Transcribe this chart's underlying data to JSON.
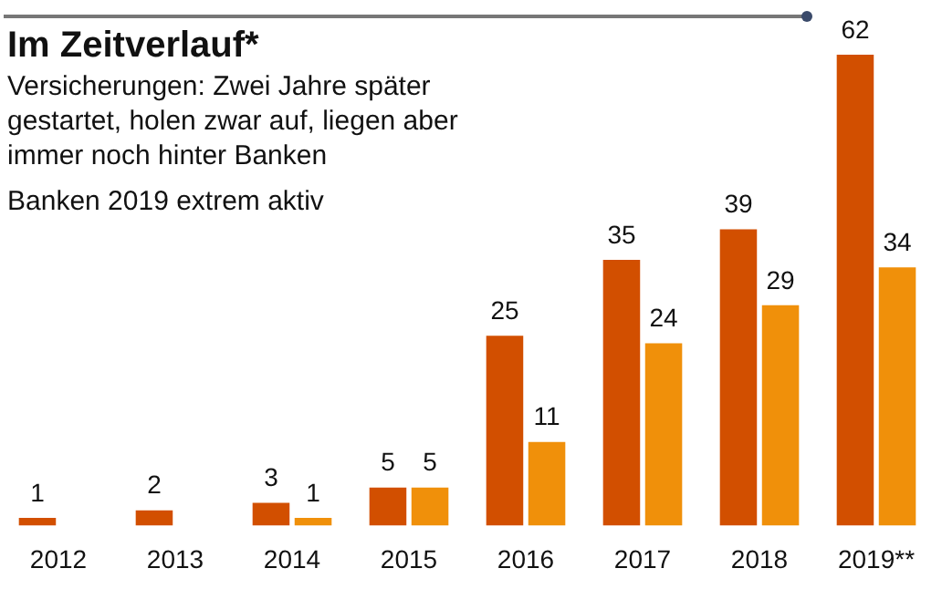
{
  "chart_data": {
    "type": "bar",
    "title": "Im Zeitverlauf*",
    "subtitle": "Versicherungen: Zwei Jahre später gestartet, holen zwar auf, liegen aber immer noch hinter Banken",
    "annotations": [
      "Banken 2019 extrem aktiv"
    ],
    "categories": [
      "2012",
      "2013",
      "2014",
      "2015",
      "2016",
      "2017",
      "2018",
      "2019**"
    ],
    "series": [
      {
        "color": "#d24f00",
        "values": [
          1,
          2,
          3,
          5,
          25,
          35,
          39,
          62
        ]
      },
      {
        "color": "#f0900a",
        "values": [
          null,
          null,
          1,
          5,
          11,
          24,
          29,
          34
        ]
      }
    ],
    "data_labels": true,
    "grid": false,
    "legend": false
  }
}
